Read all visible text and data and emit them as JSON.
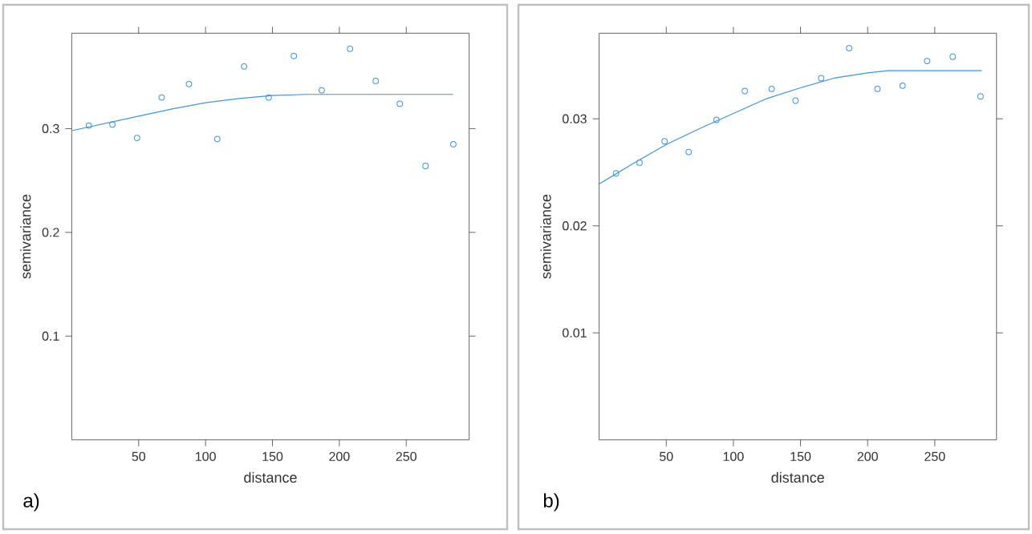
{
  "chart_data": [
    {
      "type": "scatter",
      "xlabel": "distance",
      "ylabel": "semivariance",
      "annotations": [
        "a)"
      ],
      "xlim": [
        0,
        297
      ],
      "ylim": [
        0,
        0.392
      ],
      "xticks": [
        50,
        100,
        150,
        200,
        250
      ],
      "yticks": [
        0.1,
        0.2,
        0.3
      ],
      "series": [
        {
          "marker": "circle",
          "color": "#3d95dd",
          "x": [
            12.8,
            30.4,
            48.8,
            67.2,
            87.6,
            108.8,
            128.8,
            147.2,
            166,
            186.8,
            208,
            227.2,
            245.2,
            264.4,
            285.2
          ],
          "values": [
            0.303,
            0.304,
            0.291,
            0.33,
            0.343,
            0.29,
            0.36,
            0.33,
            0.37,
            0.337,
            0.377,
            0.346,
            0.324,
            0.264,
            0.285
          ]
        },
        {
          "type": "line",
          "marker": "none",
          "color": "#3d95dd",
          "x": [
            0,
            25,
            50,
            75,
            100,
            125,
            150,
            175,
            200,
            250,
            285
          ],
          "values": [
            0.298,
            0.305,
            0.312,
            0.319,
            0.325,
            0.329,
            0.332,
            0.333,
            0.333,
            0.333,
            0.333
          ]
        }
      ]
    },
    {
      "type": "scatter",
      "xlabel": "distance",
      "ylabel": "semivariance",
      "annotations": [
        "b)"
      ],
      "xlim": [
        0,
        296
      ],
      "ylim": [
        0,
        0.038
      ],
      "xticks": [
        50,
        100,
        150,
        200,
        250
      ],
      "yticks": [
        0.01,
        0.02,
        0.03
      ],
      "series": [
        {
          "marker": "circle",
          "color": "#3d95dd",
          "x": [
            12.6,
            30.1,
            48.8,
            66.7,
            87.4,
            108.5,
            128.5,
            146.3,
            165.4,
            186.2,
            207.3,
            226,
            244.3,
            263.4,
            284.1
          ],
          "values": [
            0.0249,
            0.0259,
            0.0279,
            0.0269,
            0.0299,
            0.0326,
            0.0328,
            0.0317,
            0.0338,
            0.0366,
            0.0328,
            0.0331,
            0.0354,
            0.0358,
            0.0321
          ]
        },
        {
          "type": "line",
          "marker": "none",
          "color": "#3d95dd",
          "x": [
            0,
            25,
            50,
            75,
            100,
            125,
            150,
            175,
            200,
            215,
            250,
            285
          ],
          "values": [
            0.0239,
            0.0258,
            0.0276,
            0.0291,
            0.0305,
            0.0319,
            0.0329,
            0.0338,
            0.0343,
            0.0345,
            0.0345,
            0.0345
          ]
        }
      ]
    }
  ]
}
